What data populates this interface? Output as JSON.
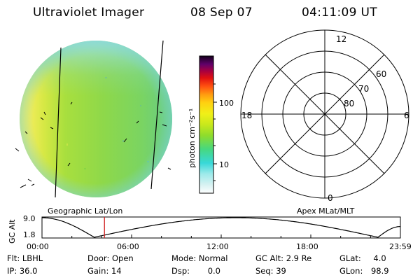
{
  "header": {
    "title": "Ultraviolet Imager",
    "date": "08 Sep 07",
    "time": "04:11:09 UT"
  },
  "image_panel": {
    "label": "Geographic Lat/Lon"
  },
  "colorbar": {
    "unit_label": "photon cm⁻²s⁻¹",
    "ticks": [
      "100",
      "10"
    ]
  },
  "polar_panel": {
    "label": "Apex MLat/MLT",
    "mlt_labels": {
      "top": "12",
      "left": "18",
      "right": "6",
      "bottom": "0"
    },
    "mlat_labels": [
      "60",
      "70",
      "80"
    ]
  },
  "altitude_plot": {
    "ylabel": "GC Alt",
    "yticks": [
      "9.0",
      "1.8"
    ],
    "xticks": [
      "00:00",
      "06:00",
      "12:00",
      "18:00",
      "23:59"
    ],
    "current_time_marker": "04:11"
  },
  "info": {
    "row1": [
      {
        "label": "Flt:",
        "value": "LBHL"
      },
      {
        "label": "Door:",
        "value": "Open"
      },
      {
        "label": "Mode:",
        "value": "Normal"
      },
      {
        "label": "GC Alt:",
        "value": "2.9 Re"
      },
      {
        "label": "GLat:",
        "value": "4.0"
      }
    ],
    "row2": [
      {
        "label": "IP:",
        "value": "36.0"
      },
      {
        "label": "Gain:",
        "value": "14"
      },
      {
        "label": "Dsp:",
        "value": "0.0"
      },
      {
        "label": "Seq:",
        "value": "39"
      },
      {
        "label": "GLon:",
        "value": "98.9"
      }
    ]
  }
}
